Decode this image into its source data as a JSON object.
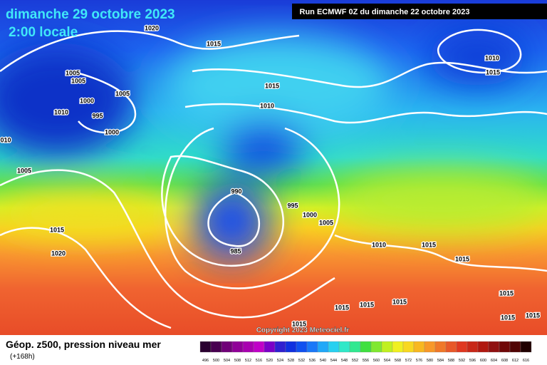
{
  "header": {
    "title": "dimanche 29 octobre 2023",
    "subtitle": "2:00 locale",
    "run": "Run ECMWF 0Z du dimanche 22 octobre 2023"
  },
  "isobar_labels": [
    "1020",
    "1015",
    "1005",
    "1005",
    "1005",
    "1000",
    "1010",
    "995",
    "1000",
    "010",
    "1005",
    "1015",
    "1010",
    "1010",
    "1015",
    "990",
    "995",
    "1000",
    "1005",
    "1015",
    "1020",
    "985",
    "1010",
    "1015",
    "1015",
    "1015",
    "1015",
    "1015",
    "1015",
    "1015",
    "1015",
    "1015"
  ],
  "copyright": "Copyright 2023 Meteociel.fr",
  "legend": {
    "title": "Géop. z500, pression niveau mer",
    "lead": "(+168h)",
    "scale": [
      "496",
      "500",
      "504",
      "508",
      "512",
      "516",
      "520",
      "524",
      "528",
      "532",
      "536",
      "540",
      "544",
      "548",
      "552",
      "556",
      "560",
      "564",
      "568",
      "572",
      "576",
      "580",
      "584",
      "588",
      "592",
      "596",
      "600",
      "604",
      "608",
      "612",
      "616"
    ]
  }
}
